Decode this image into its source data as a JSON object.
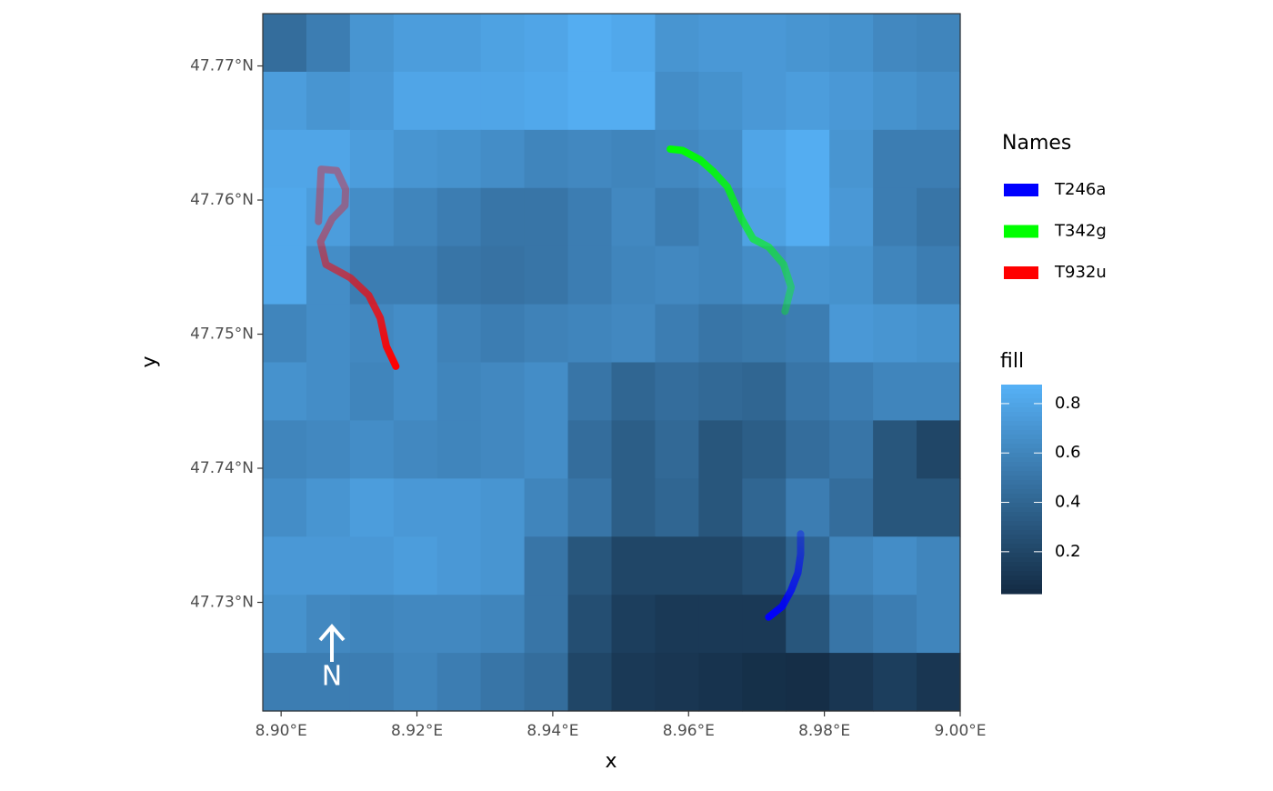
{
  "chart_data": {
    "type": "raster_tracks",
    "x_label": "x",
    "y_label": "y",
    "xlim": [
      8.8973,
      9.0
    ],
    "ylim": [
      47.7219,
      47.7739
    ],
    "xticks": [
      {
        "value": 8.9,
        "label": "8.90°E"
      },
      {
        "value": 8.92,
        "label": "8.92°E"
      },
      {
        "value": 8.94,
        "label": "8.94°E"
      },
      {
        "value": 8.96,
        "label": "8.96°E"
      },
      {
        "value": 8.98,
        "label": "8.98°E"
      },
      {
        "value": 9.0,
        "label": "9.00°E"
      }
    ],
    "yticks": [
      {
        "value": 47.73,
        "label": "47.73°N"
      },
      {
        "value": 47.74,
        "label": "47.74°N"
      },
      {
        "value": 47.75,
        "label": "47.75°N"
      },
      {
        "value": 47.76,
        "label": "47.76°N"
      },
      {
        "value": 47.77,
        "label": "47.77°N"
      }
    ],
    "legend_title": "Names",
    "fill_title": "fill",
    "fill_low_color": "#132B43",
    "fill_high_color": "#56B1F7",
    "fill_lim": [
      0.03,
      0.877
    ],
    "fill_ticks": [
      0.2,
      0.4,
      0.6,
      0.8
    ],
    "annotations": [
      "N"
    ],
    "raster": {
      "values": [
        [
          0.45,
          0.55,
          0.7,
          0.75,
          0.75,
          0.78,
          0.8,
          0.85,
          0.82,
          0.7,
          0.72,
          0.72,
          0.7,
          0.68,
          0.62,
          0.6
        ],
        [
          0.75,
          0.7,
          0.72,
          0.8,
          0.8,
          0.8,
          0.82,
          0.85,
          0.85,
          0.65,
          0.68,
          0.72,
          0.75,
          0.72,
          0.68,
          0.65
        ],
        [
          0.8,
          0.8,
          0.75,
          0.7,
          0.68,
          0.65,
          0.6,
          0.62,
          0.6,
          0.62,
          0.65,
          0.8,
          0.85,
          0.7,
          0.55,
          0.55
        ],
        [
          0.82,
          0.75,
          0.65,
          0.6,
          0.55,
          0.5,
          0.5,
          0.55,
          0.62,
          0.55,
          0.6,
          0.78,
          0.85,
          0.72,
          0.55,
          0.5
        ],
        [
          0.82,
          0.65,
          0.55,
          0.55,
          0.5,
          0.48,
          0.5,
          0.55,
          0.6,
          0.62,
          0.6,
          0.65,
          0.7,
          0.68,
          0.6,
          0.55
        ],
        [
          0.6,
          0.65,
          0.62,
          0.65,
          0.58,
          0.55,
          0.58,
          0.6,
          0.62,
          0.55,
          0.5,
          0.52,
          0.55,
          0.72,
          0.7,
          0.68
        ],
        [
          0.68,
          0.65,
          0.6,
          0.65,
          0.6,
          0.62,
          0.65,
          0.5,
          0.4,
          0.45,
          0.42,
          0.4,
          0.5,
          0.55,
          0.6,
          0.6
        ],
        [
          0.6,
          0.62,
          0.65,
          0.62,
          0.6,
          0.62,
          0.65,
          0.45,
          0.35,
          0.42,
          0.3,
          0.35,
          0.45,
          0.5,
          0.3,
          0.2
        ],
        [
          0.65,
          0.7,
          0.75,
          0.72,
          0.72,
          0.7,
          0.6,
          0.5,
          0.35,
          0.4,
          0.3,
          0.4,
          0.55,
          0.45,
          0.3,
          0.3
        ],
        [
          0.72,
          0.72,
          0.72,
          0.75,
          0.72,
          0.7,
          0.5,
          0.3,
          0.2,
          0.2,
          0.2,
          0.25,
          0.4,
          0.6,
          0.65,
          0.6
        ],
        [
          0.68,
          0.62,
          0.6,
          0.62,
          0.62,
          0.6,
          0.5,
          0.25,
          0.15,
          0.12,
          0.12,
          0.12,
          0.3,
          0.5,
          0.55,
          0.6
        ],
        [
          0.55,
          0.55,
          0.55,
          0.6,
          0.55,
          0.5,
          0.45,
          0.2,
          0.12,
          0.1,
          0.08,
          0.06,
          0.05,
          0.1,
          0.15,
          0.1
        ]
      ]
    },
    "series": [
      {
        "name": "T246a",
        "color": "#0000ff",
        "x": [
          8.9765,
          8.9765,
          8.9761,
          8.9751,
          8.9738,
          8.9718
        ],
        "y": [
          47.7351,
          47.7336,
          47.7322,
          47.7309,
          47.7297,
          47.7289
        ]
      },
      {
        "name": "T342g",
        "color": "#00ff00",
        "x": [
          8.9742,
          8.9751,
          8.974,
          8.9718,
          8.9695,
          8.9678,
          8.9657,
          8.9637,
          8.9617,
          8.9591,
          8.9573
        ],
        "y": [
          47.7517,
          47.7535,
          47.7552,
          47.7565,
          47.7571,
          47.7586,
          47.761,
          47.7621,
          47.763,
          47.7637,
          47.7638
        ]
      },
      {
        "name": "T932u",
        "color": "#ff0000",
        "x": [
          8.9055,
          8.9059,
          8.9082,
          8.9095,
          8.9094,
          8.9075,
          8.9058,
          8.9066,
          8.9102,
          8.9129,
          8.9146,
          8.9155,
          8.9169
        ],
        "y": [
          47.7584,
          47.7623,
          47.7622,
          47.7608,
          47.7596,
          47.7586,
          47.7569,
          47.7552,
          47.7542,
          47.7529,
          47.7512,
          47.7491,
          47.7476
        ]
      }
    ]
  }
}
